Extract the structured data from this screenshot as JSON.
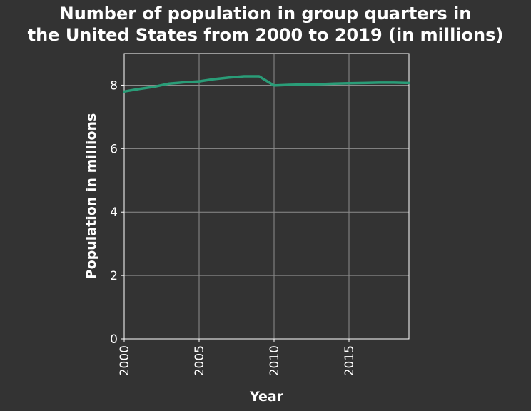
{
  "chart_data": {
    "type": "line",
    "title_lines": [
      "Number of population in group quarters in",
      "the United States from 2000 to 2019 (in millions)"
    ],
    "xlabel": "Year",
    "ylabel": "Population in millions",
    "xlim": [
      2000,
      2019
    ],
    "ylim": [
      0,
      9
    ],
    "x_ticks": [
      2000,
      2005,
      2010,
      2015
    ],
    "y_ticks": [
      0,
      2,
      4,
      6,
      8
    ],
    "grid": true,
    "legend": false,
    "colors": {
      "background": "#333333",
      "grid": "#8c8c8c",
      "axis": "#ffffff",
      "series": "#2a9d78"
    },
    "series": [
      {
        "x": [
          2000,
          2001,
          2002,
          2003,
          2004,
          2005,
          2006,
          2007,
          2008,
          2009,
          2010,
          2011,
          2012,
          2013,
          2014,
          2015,
          2016,
          2017,
          2018,
          2019
        ],
        "y": [
          7.8,
          7.88,
          7.95,
          8.05,
          8.09,
          8.12,
          8.19,
          8.24,
          8.28,
          8.28,
          7.99,
          8.01,
          8.02,
          8.03,
          8.05,
          8.06,
          8.07,
          8.08,
          8.08,
          8.07
        ]
      }
    ]
  }
}
